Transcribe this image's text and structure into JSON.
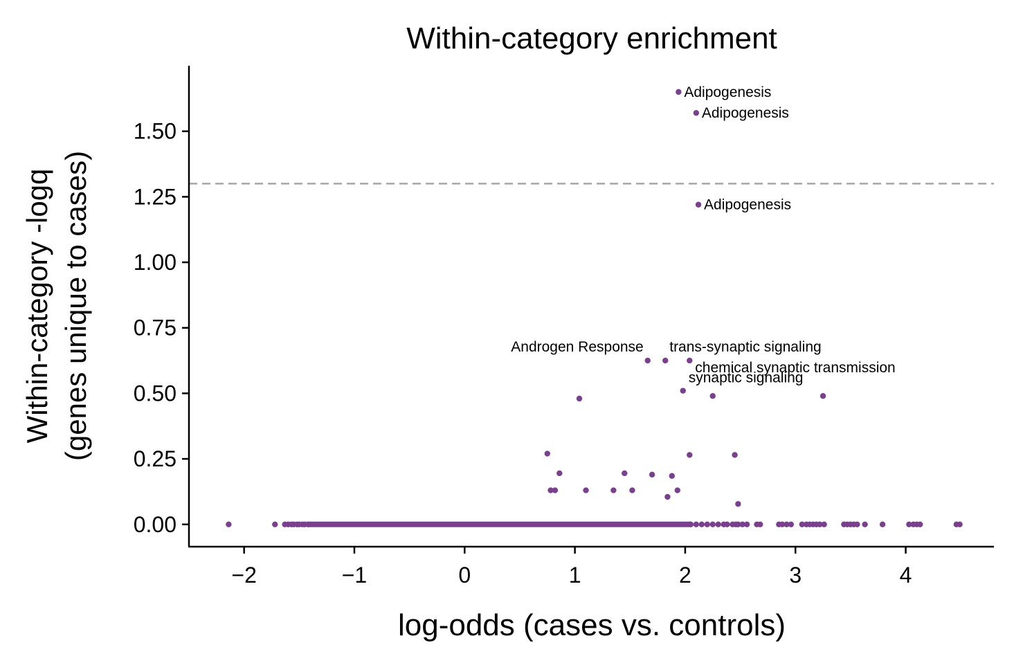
{
  "chart_data": {
    "type": "scatter",
    "title": "Within-category enrichment",
    "xlabel": "log-odds (cases vs. controls)",
    "ylabel_lines": [
      "Within-category -logq",
      "(genes unique to cases)"
    ],
    "xlim": [
      -2.5,
      4.8
    ],
    "ylim": [
      -0.085,
      1.75
    ],
    "xticks": [
      -2,
      -1,
      0,
      1,
      2,
      3,
      4
    ],
    "xtick_labels": [
      "−2",
      "−1",
      "0",
      "1",
      "2",
      "3",
      "4"
    ],
    "yticks": [
      0,
      0.25,
      0.5,
      0.75,
      1.0,
      1.25,
      1.5
    ],
    "ytick_labels": [
      "0.00",
      "0.25",
      "0.50",
      "0.75",
      "1.00",
      "1.25",
      "1.50"
    ],
    "threshold_y": 1.3,
    "grid": false,
    "point_color": "#7b3f8f",
    "threshold_color": "#a6a6a6",
    "annotations": [
      {
        "text": "Adipogenesis",
        "x": 1.94,
        "y": 1.65,
        "align": "left"
      },
      {
        "text": "Adipogenesis",
        "x": 2.1,
        "y": 1.57,
        "align": "left"
      },
      {
        "text": "Adipogenesis",
        "x": 2.12,
        "y": 1.22,
        "align": "left"
      },
      {
        "text": "Androgen Response",
        "x": 1.66,
        "y": 0.625,
        "align": "right"
      },
      {
        "text": "trans-synaptic signaling",
        "x": 1.82,
        "y": 0.625,
        "align": "left"
      },
      {
        "text": "chemical synaptic transmission",
        "x": 2.04,
        "y": 0.625,
        "align": "left"
      },
      {
        "text": "synaptic signaling",
        "x": 1.98,
        "y": 0.51,
        "align": "left"
      }
    ],
    "points": [
      {
        "x": 1.94,
        "y": 1.65
      },
      {
        "x": 2.1,
        "y": 1.57
      },
      {
        "x": 2.12,
        "y": 1.22
      },
      {
        "x": 1.66,
        "y": 0.625
      },
      {
        "x": 1.82,
        "y": 0.625
      },
      {
        "x": 2.04,
        "y": 0.625
      },
      {
        "x": 1.04,
        "y": 0.48
      },
      {
        "x": 1.98,
        "y": 0.51
      },
      {
        "x": 2.25,
        "y": 0.49
      },
      {
        "x": 3.25,
        "y": 0.49
      },
      {
        "x": 0.75,
        "y": 0.27
      },
      {
        "x": 2.04,
        "y": 0.265
      },
      {
        "x": 2.45,
        "y": 0.265
      },
      {
        "x": 0.86,
        "y": 0.195
      },
      {
        "x": 1.45,
        "y": 0.195
      },
      {
        "x": 1.7,
        "y": 0.19
      },
      {
        "x": 1.88,
        "y": 0.185
      },
      {
        "x": 0.78,
        "y": 0.13
      },
      {
        "x": 0.82,
        "y": 0.13
      },
      {
        "x": 1.1,
        "y": 0.13
      },
      {
        "x": 1.35,
        "y": 0.13
      },
      {
        "x": 1.52,
        "y": 0.13
      },
      {
        "x": 1.93,
        "y": 0.13
      },
      {
        "x": 1.84,
        "y": 0.105
      },
      {
        "x": 2.48,
        "y": 0.078
      }
    ],
    "zero_points_x": [
      -2.14,
      -1.72,
      -1.63,
      -1.6,
      -1.57,
      -1.55,
      -1.52,
      -1.5,
      -1.47,
      -1.45,
      -1.42,
      2.05,
      2.1,
      2.15,
      2.2,
      2.25,
      2.3,
      2.35,
      2.38,
      2.43,
      2.46,
      2.48,
      2.52,
      2.56,
      2.65,
      2.68,
      2.85,
      2.88,
      2.92,
      2.96,
      3.06,
      3.1,
      3.13,
      3.16,
      3.19,
      3.22,
      3.26,
      3.44,
      3.47,
      3.5,
      3.53,
      3.56,
      3.63,
      3.79,
      4.03,
      4.07,
      4.1,
      4.13,
      4.46,
      4.49
    ],
    "zero_band": [
      -1.42,
      2.05
    ]
  }
}
